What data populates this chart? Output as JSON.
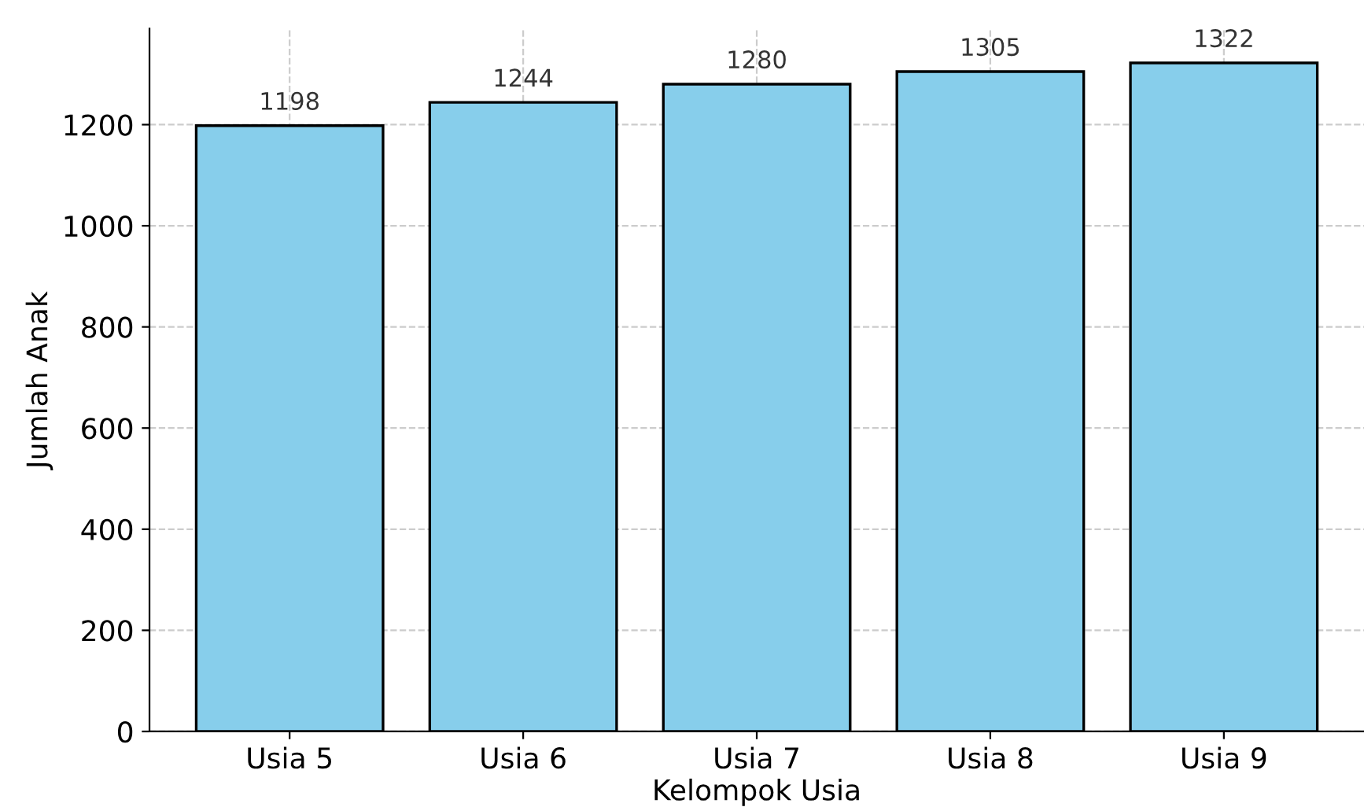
{
  "chart_data": {
    "type": "bar",
    "xlabel": "Kelompok Usia",
    "ylabel": "Jumlah Anak",
    "categories": [
      "Usia 5",
      "Usia 6",
      "Usia 7",
      "Usia 8",
      "Usia 9"
    ],
    "values": [
      1198,
      1244,
      1280,
      1305,
      1322
    ],
    "color": "#87ceeb",
    "ylim": [
      0,
      1390
    ],
    "yticks": [
      0,
      200,
      400,
      600,
      800,
      1000,
      1200
    ],
    "grid": true,
    "data_labels": true
  }
}
